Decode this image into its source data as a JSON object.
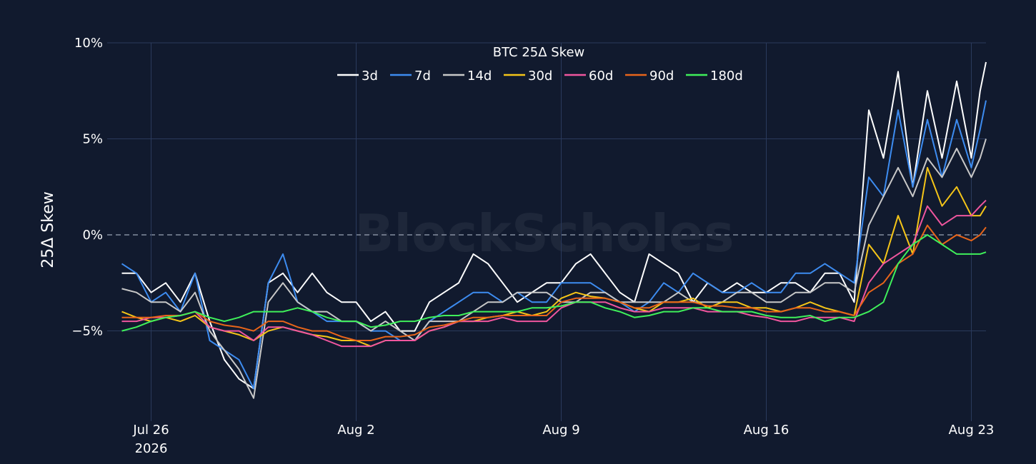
{
  "chart_data": {
    "type": "line",
    "title": "BTC 25Δ Skew",
    "ylabel": "25Δ Skew",
    "xlabel": "",
    "watermark": "BlockScholes",
    "ylim": [
      -9.7,
      10
    ],
    "xlim": [
      -1.5,
      28.5
    ],
    "yticks": [
      {
        "value": 10,
        "label": "10%"
      },
      {
        "value": 5,
        "label": "5%"
      },
      {
        "value": 0,
        "label": "0%"
      },
      {
        "value": -5,
        "label": "−5%"
      }
    ],
    "xticks": [
      {
        "value": 0,
        "label": "Jul 26",
        "sublabel": "2026"
      },
      {
        "value": 7,
        "label": "Aug 2",
        "sublabel": ""
      },
      {
        "value": 14,
        "label": "Aug 9",
        "sublabel": ""
      },
      {
        "value": 21,
        "label": "Aug 16",
        "sublabel": ""
      },
      {
        "value": 28,
        "label": "Aug 23",
        "sublabel": ""
      }
    ],
    "x_note": "x values are days after Jul 26 2026",
    "zero_line": true,
    "legend_position": "top-center",
    "grid": true,
    "series": [
      {
        "name": "3d",
        "color": "#ffffff",
        "x": [
          -1.0,
          -0.5,
          0.0,
          0.5,
          1.0,
          1.5,
          2.0,
          2.5,
          3.0,
          3.5,
          4.0,
          4.5,
          5.0,
          5.5,
          6.0,
          6.5,
          7.0,
          7.5,
          8.0,
          8.5,
          9.0,
          9.5,
          10.0,
          10.5,
          11.0,
          11.5,
          12.0,
          12.5,
          13.0,
          13.5,
          14.0,
          14.5,
          15.0,
          15.5,
          16.0,
          16.5,
          17.0,
          17.5,
          18.0,
          18.5,
          19.0,
          19.5,
          20.0,
          20.5,
          21.0,
          21.5,
          22.0,
          22.5,
          23.0,
          23.5,
          24.0,
          24.5,
          25.0,
          25.5,
          26.0,
          26.5,
          27.0,
          27.5,
          28.0,
          28.3,
          28.5
        ],
        "y": [
          -2.0,
          -2.0,
          -3.0,
          -2.5,
          -3.5,
          -2.0,
          -4.5,
          -6.5,
          -7.5,
          -8.0,
          -2.5,
          -2.0,
          -3.0,
          -2.0,
          -3.0,
          -3.5,
          -3.5,
          -4.5,
          -4.0,
          -5.0,
          -5.0,
          -3.5,
          -3.0,
          -2.5,
          -1.0,
          -1.5,
          -2.5,
          -3.5,
          -3.0,
          -2.5,
          -2.5,
          -1.5,
          -1.0,
          -2.0,
          -3.0,
          -3.5,
          -1.0,
          -1.5,
          -2.0,
          -3.5,
          -2.5,
          -3.0,
          -2.5,
          -3.0,
          -3.0,
          -2.5,
          -2.5,
          -3.0,
          -2.0,
          -2.0,
          -3.5,
          6.5,
          4.0,
          8.5,
          2.5,
          7.5,
          4.0,
          8.0,
          4.0,
          7.5,
          9.0
        ]
      },
      {
        "name": "7d",
        "color": "#3d8cf0",
        "x": [
          -1.0,
          -0.5,
          0.0,
          0.5,
          1.0,
          1.5,
          2.0,
          2.5,
          3.0,
          3.5,
          4.0,
          4.5,
          5.0,
          5.5,
          6.0,
          6.5,
          7.0,
          7.5,
          8.0,
          8.5,
          9.0,
          9.5,
          10.0,
          10.5,
          11.0,
          11.5,
          12.0,
          12.5,
          13.0,
          13.5,
          14.0,
          14.5,
          15.0,
          15.5,
          16.0,
          16.5,
          17.0,
          17.5,
          18.0,
          18.5,
          19.0,
          19.5,
          20.0,
          20.5,
          21.0,
          21.5,
          22.0,
          22.5,
          23.0,
          23.5,
          24.0,
          24.5,
          25.0,
          25.5,
          26.0,
          26.5,
          27.0,
          27.5,
          28.0,
          28.3,
          28.5
        ],
        "y": [
          -1.5,
          -2.0,
          -3.5,
          -3.0,
          -4.0,
          -2.0,
          -5.5,
          -6.0,
          -6.5,
          -8.0,
          -2.5,
          -1.0,
          -3.5,
          -4.0,
          -4.5,
          -4.5,
          -4.5,
          -5.0,
          -5.0,
          -5.5,
          -5.5,
          -4.5,
          -4.0,
          -3.5,
          -3.0,
          -3.0,
          -3.5,
          -3.0,
          -3.5,
          -3.5,
          -2.5,
          -2.5,
          -2.5,
          -3.0,
          -3.5,
          -4.0,
          -3.5,
          -2.5,
          -3.0,
          -2.0,
          -2.5,
          -3.0,
          -3.0,
          -2.5,
          -3.0,
          -3.0,
          -2.0,
          -2.0,
          -1.5,
          -2.0,
          -2.5,
          3.0,
          2.0,
          6.5,
          2.5,
          6.0,
          3.0,
          6.0,
          3.5,
          5.5,
          7.0
        ]
      },
      {
        "name": "14d",
        "color": "#c8c8c8",
        "x": [
          -1.0,
          -0.5,
          0.0,
          0.5,
          1.0,
          1.5,
          2.0,
          2.5,
          3.0,
          3.5,
          4.0,
          4.5,
          5.0,
          5.5,
          6.0,
          6.5,
          7.0,
          7.5,
          8.0,
          8.5,
          9.0,
          9.5,
          10.0,
          10.5,
          11.0,
          11.5,
          12.0,
          12.5,
          13.0,
          13.5,
          14.0,
          14.5,
          15.0,
          15.5,
          16.0,
          16.5,
          17.0,
          17.5,
          18.0,
          18.5,
          19.0,
          19.5,
          20.0,
          20.5,
          21.0,
          21.5,
          22.0,
          22.5,
          23.0,
          23.5,
          24.0,
          24.5,
          25.0,
          25.5,
          26.0,
          26.5,
          27.0,
          27.5,
          28.0,
          28.3,
          28.5
        ],
        "y": [
          -2.8,
          -3.0,
          -3.5,
          -3.5,
          -4.0,
          -3.0,
          -5.0,
          -6.0,
          -7.0,
          -8.5,
          -3.5,
          -2.5,
          -3.5,
          -4.0,
          -4.0,
          -4.5,
          -4.5,
          -5.0,
          -4.5,
          -5.0,
          -5.5,
          -4.5,
          -4.5,
          -4.5,
          -4.0,
          -3.5,
          -3.5,
          -3.0,
          -3.0,
          -3.0,
          -3.5,
          -3.5,
          -3.0,
          -3.0,
          -3.5,
          -3.5,
          -3.5,
          -3.5,
          -3.0,
          -3.5,
          -3.5,
          -3.5,
          -3.0,
          -3.0,
          -3.5,
          -3.5,
          -3.0,
          -3.0,
          -2.5,
          -2.5,
          -3.0,
          0.5,
          2.0,
          3.5,
          2.0,
          4.0,
          3.0,
          4.5,
          3.0,
          4.0,
          5.0
        ]
      },
      {
        "name": "30d",
        "color": "#f5c518",
        "x": [
          -1.0,
          -0.5,
          0.0,
          0.5,
          1.0,
          1.5,
          2.0,
          2.5,
          3.0,
          3.5,
          4.0,
          4.5,
          5.0,
          5.5,
          6.0,
          6.5,
          7.0,
          7.5,
          8.0,
          8.5,
          9.0,
          9.5,
          10.0,
          10.5,
          11.0,
          11.5,
          12.0,
          12.5,
          13.0,
          13.5,
          14.0,
          14.5,
          15.0,
          15.5,
          16.0,
          16.5,
          17.0,
          17.5,
          18.0,
          18.5,
          19.0,
          19.5,
          20.0,
          20.5,
          21.0,
          21.5,
          22.0,
          22.5,
          23.0,
          23.5,
          24.0,
          24.5,
          25.0,
          25.5,
          26.0,
          26.5,
          27.0,
          27.5,
          28.0,
          28.3,
          28.5
        ],
        "y": [
          -4.0,
          -4.3,
          -4.5,
          -4.3,
          -4.5,
          -4.2,
          -4.8,
          -5.0,
          -5.2,
          -5.5,
          -5.0,
          -4.8,
          -5.0,
          -5.2,
          -5.3,
          -5.5,
          -5.5,
          -5.8,
          -5.5,
          -5.5,
          -5.5,
          -5.0,
          -4.8,
          -4.5,
          -4.5,
          -4.3,
          -4.2,
          -4.0,
          -4.2,
          -4.0,
          -3.3,
          -3.0,
          -3.2,
          -3.3,
          -3.5,
          -3.8,
          -4.0,
          -3.5,
          -3.5,
          -3.3,
          -3.8,
          -3.5,
          -3.5,
          -3.8,
          -3.8,
          -4.0,
          -3.8,
          -3.5,
          -3.8,
          -4.0,
          -4.2,
          -0.5,
          -1.5,
          1.0,
          -1.0,
          3.5,
          1.5,
          2.5,
          1.0,
          1.0,
          1.5
        ]
      },
      {
        "name": "60d",
        "color": "#f0569e",
        "x": [
          -1.0,
          -0.5,
          0.0,
          0.5,
          1.0,
          1.5,
          2.0,
          2.5,
          3.0,
          3.5,
          4.0,
          4.5,
          5.0,
          5.5,
          6.0,
          6.5,
          7.0,
          7.5,
          8.0,
          8.5,
          9.0,
          9.5,
          10.0,
          10.5,
          11.0,
          11.5,
          12.0,
          12.5,
          13.0,
          13.5,
          14.0,
          14.5,
          15.0,
          15.5,
          16.0,
          16.5,
          17.0,
          17.5,
          18.0,
          18.5,
          19.0,
          19.5,
          20.0,
          20.5,
          21.0,
          21.5,
          22.0,
          22.5,
          23.0,
          23.5,
          24.0,
          24.5,
          25.0,
          25.5,
          26.0,
          26.5,
          27.0,
          27.5,
          28.0,
          28.3,
          28.5
        ],
        "y": [
          -4.5,
          -4.5,
          -4.3,
          -4.3,
          -4.2,
          -4.0,
          -4.8,
          -5.0,
          -5.0,
          -5.5,
          -4.8,
          -4.8,
          -5.0,
          -5.2,
          -5.5,
          -5.8,
          -5.8,
          -5.8,
          -5.5,
          -5.5,
          -5.5,
          -5.0,
          -4.8,
          -4.5,
          -4.5,
          -4.5,
          -4.3,
          -4.5,
          -4.5,
          -4.5,
          -3.8,
          -3.5,
          -3.5,
          -3.5,
          -3.8,
          -4.0,
          -4.0,
          -3.8,
          -3.8,
          -3.8,
          -4.0,
          -4.0,
          -4.0,
          -4.2,
          -4.3,
          -4.5,
          -4.5,
          -4.3,
          -4.3,
          -4.3,
          -4.5,
          -2.5,
          -1.5,
          -1.0,
          -0.5,
          1.5,
          0.5,
          1.0,
          1.0,
          1.5,
          1.8
        ]
      },
      {
        "name": "90d",
        "color": "#e8651a",
        "x": [
          -1.0,
          -0.5,
          0.0,
          0.5,
          1.0,
          1.5,
          2.0,
          2.5,
          3.0,
          3.5,
          4.0,
          4.5,
          5.0,
          5.5,
          6.0,
          6.5,
          7.0,
          7.5,
          8.0,
          8.5,
          9.0,
          9.5,
          10.0,
          10.5,
          11.0,
          11.5,
          12.0,
          12.5,
          13.0,
          13.5,
          14.0,
          14.5,
          15.0,
          15.5,
          16.0,
          16.5,
          17.0,
          17.5,
          18.0,
          18.5,
          19.0,
          19.5,
          20.0,
          20.5,
          21.0,
          21.5,
          22.0,
          22.5,
          23.0,
          23.5,
          24.0,
          24.5,
          25.0,
          25.5,
          26.0,
          26.5,
          27.0,
          27.5,
          28.0,
          28.3,
          28.5
        ],
        "y": [
          -4.3,
          -4.3,
          -4.3,
          -4.2,
          -4.2,
          -4.0,
          -4.5,
          -4.7,
          -4.8,
          -5.0,
          -4.5,
          -4.5,
          -4.8,
          -5.0,
          -5.0,
          -5.3,
          -5.5,
          -5.5,
          -5.3,
          -5.3,
          -5.2,
          -4.8,
          -4.7,
          -4.5,
          -4.3,
          -4.3,
          -4.2,
          -4.2,
          -4.2,
          -4.2,
          -3.5,
          -3.3,
          -3.3,
          -3.3,
          -3.5,
          -3.8,
          -3.8,
          -3.5,
          -3.5,
          -3.5,
          -3.7,
          -3.7,
          -3.8,
          -3.8,
          -4.0,
          -4.0,
          -3.8,
          -3.8,
          -4.0,
          -4.0,
          -4.2,
          -3.0,
          -2.5,
          -1.5,
          -1.0,
          0.5,
          -0.5,
          0.0,
          -0.3,
          0.0,
          0.4
        ]
      },
      {
        "name": "180d",
        "color": "#3ff05a",
        "x": [
          -1.0,
          -0.5,
          0.0,
          0.5,
          1.0,
          1.5,
          2.0,
          2.5,
          3.0,
          3.5,
          4.0,
          4.5,
          5.0,
          5.5,
          6.0,
          6.5,
          7.0,
          7.5,
          8.0,
          8.5,
          9.0,
          9.5,
          10.0,
          10.5,
          11.0,
          11.5,
          12.0,
          12.5,
          13.0,
          13.5,
          14.0,
          14.5,
          15.0,
          15.5,
          16.0,
          16.5,
          17.0,
          17.5,
          18.0,
          18.5,
          19.0,
          19.5,
          20.0,
          20.5,
          21.0,
          21.5,
          22.0,
          22.5,
          23.0,
          23.5,
          24.0,
          24.5,
          25.0,
          25.5,
          26.0,
          26.5,
          27.0,
          27.5,
          28.0,
          28.3,
          28.5
        ],
        "y": [
          -5.0,
          -4.8,
          -4.5,
          -4.3,
          -4.2,
          -4.0,
          -4.3,
          -4.5,
          -4.3,
          -4.0,
          -4.0,
          -4.0,
          -3.8,
          -4.0,
          -4.3,
          -4.5,
          -4.5,
          -4.8,
          -4.7,
          -4.5,
          -4.5,
          -4.3,
          -4.2,
          -4.2,
          -4.0,
          -4.0,
          -4.0,
          -4.0,
          -3.8,
          -3.8,
          -3.7,
          -3.5,
          -3.5,
          -3.8,
          -4.0,
          -4.3,
          -4.2,
          -4.0,
          -4.0,
          -3.8,
          -3.8,
          -4.0,
          -4.0,
          -4.0,
          -4.2,
          -4.3,
          -4.3,
          -4.2,
          -4.5,
          -4.3,
          -4.3,
          -4.0,
          -3.5,
          -1.5,
          -0.5,
          0.0,
          -0.5,
          -1.0,
          -1.0,
          -1.0,
          -0.9
        ]
      }
    ]
  }
}
